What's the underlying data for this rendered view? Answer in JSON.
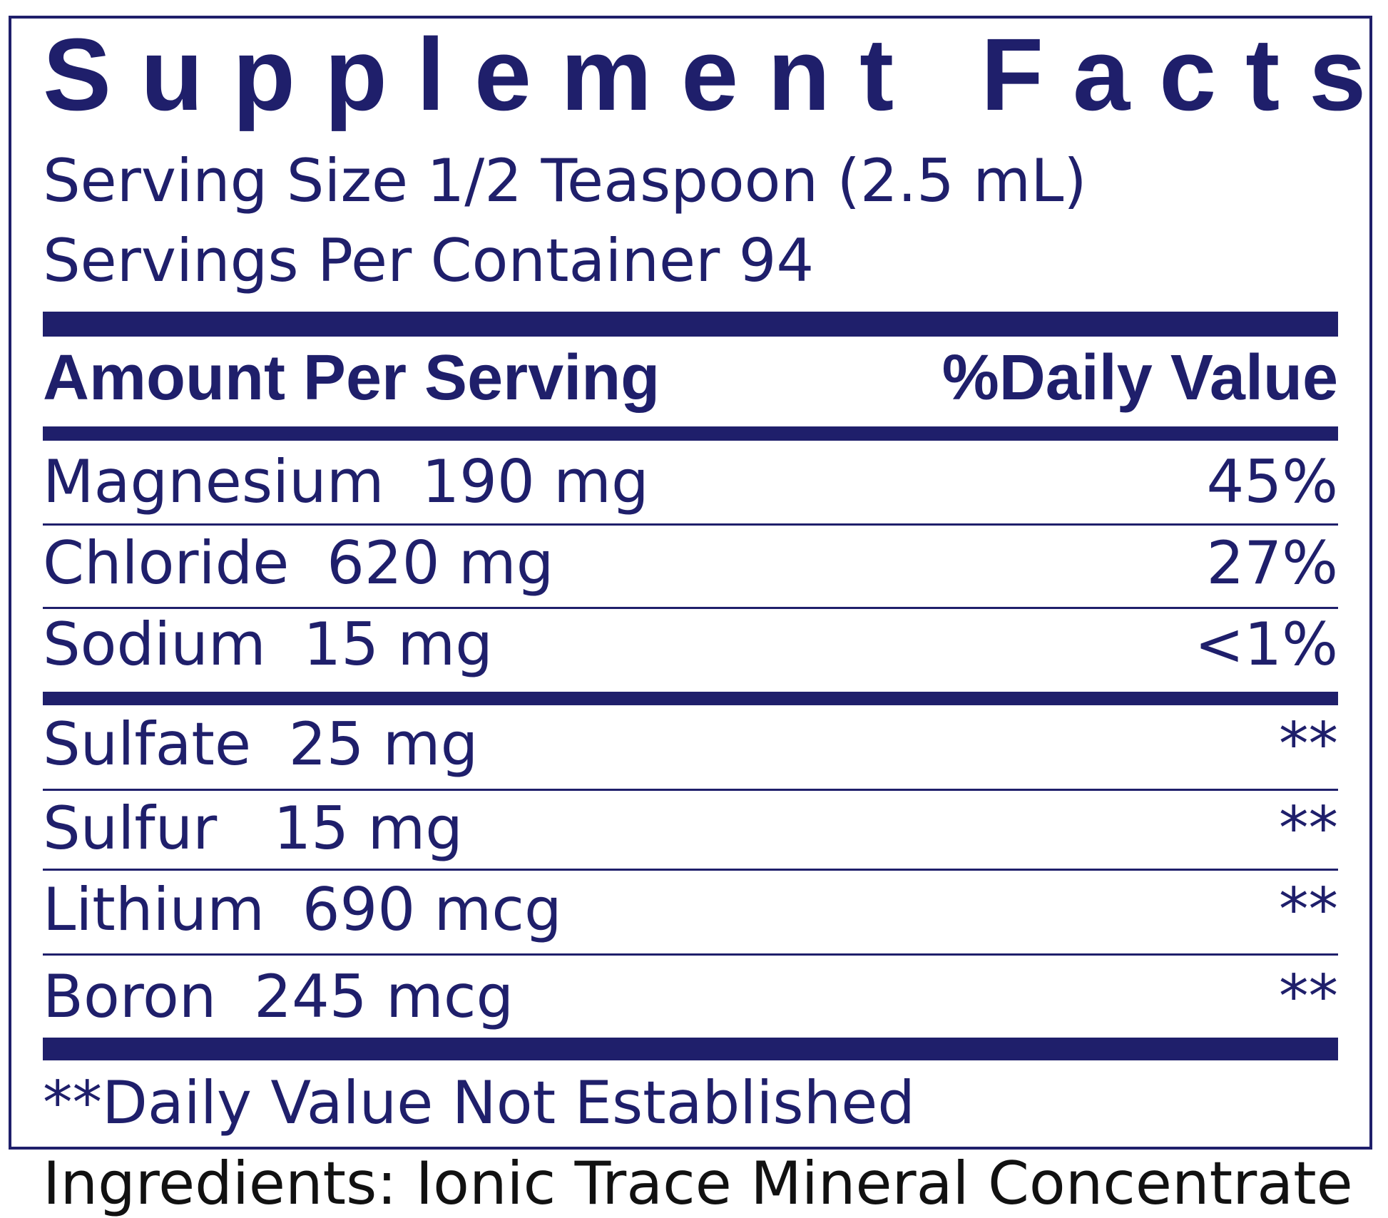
{
  "title": "Supplement Facts",
  "serving_size": "Serving Size 1/2 Teaspoon (2.5 mL)",
  "servings_per_container": "Servings Per Container 94",
  "header": {
    "amount": "Amount Per Serving",
    "daily_value": "%Daily Value"
  },
  "nutrients": [
    {
      "name": "Magnesium  190 mg",
      "dv": "45%"
    },
    {
      "name": "Chloride  620 mg",
      "dv": "27%"
    },
    {
      "name": "Sodium  15 mg",
      "dv": "<1%"
    },
    {
      "name": "Sulfate  25 mg",
      "dv": "**"
    },
    {
      "name": "Sulfur   15 mg",
      "dv": "**"
    },
    {
      "name": "Lithium  690 mcg",
      "dv": "**"
    },
    {
      "name": "Boron  245 mcg",
      "dv": "**"
    }
  ],
  "footnote": "**Daily Value Not Established",
  "below_text": "Ingredients: Ionic Trace Mineral Concentrate",
  "colors": {
    "ink": "#1f1f6b"
  }
}
